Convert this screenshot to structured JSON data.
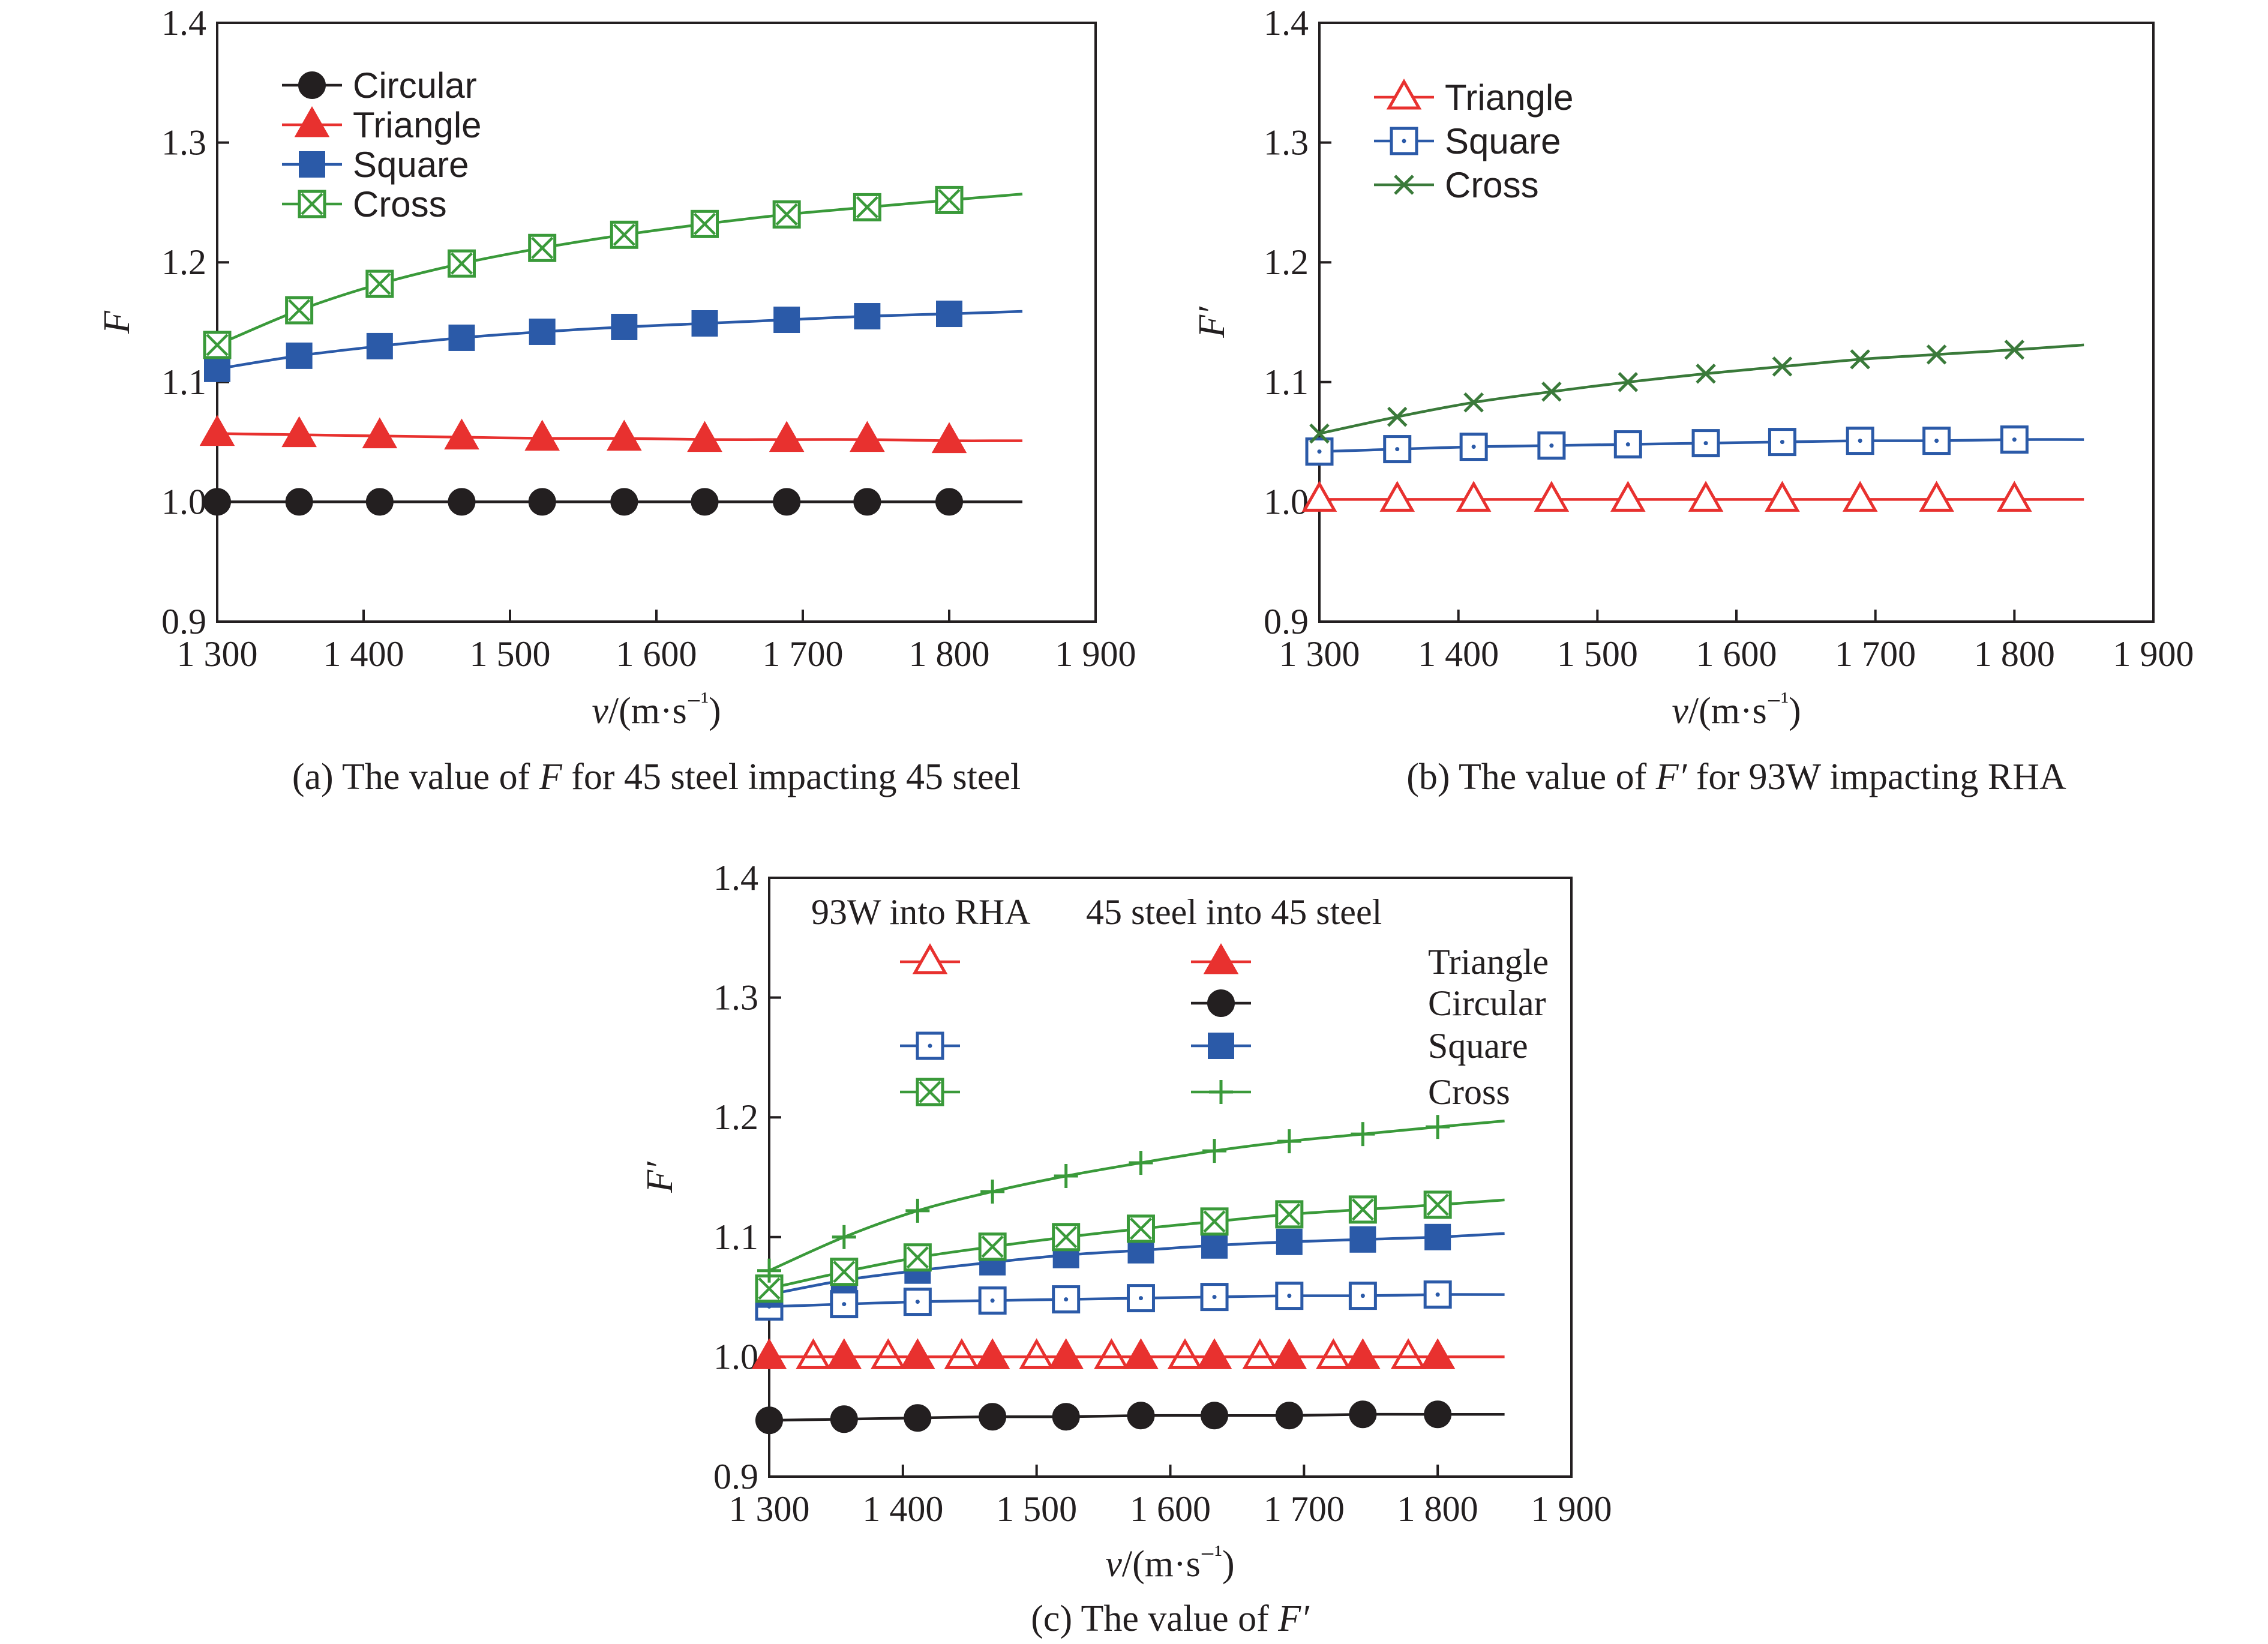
{
  "chart_data": [
    {
      "panel": "a",
      "type": "line",
      "caption": "(a) The value of F for 45 steel impacting 45 steel",
      "ylabel": "F",
      "xlabel": "v/(m·s⁻¹)",
      "xlim": [
        1300,
        1900
      ],
      "ylim": [
        0.9,
        1.4
      ],
      "xticks": [
        1300,
        1400,
        1500,
        1600,
        1700,
        1800,
        1900
      ],
      "xtick_labels": [
        "1 300",
        "1 400",
        "1 500",
        "1 600",
        "1 700",
        "1 800",
        "1 900"
      ],
      "yticks": [
        0.9,
        1.0,
        1.1,
        1.2,
        1.3,
        1.4
      ],
      "ytick_labels": [
        "0.9",
        "1.0",
        "1.1",
        "1.2",
        "1.3",
        "1.4"
      ],
      "grid": false,
      "legend_position": "top-left",
      "x": [
        1300,
        1356,
        1411,
        1467,
        1522,
        1578,
        1633,
        1689,
        1744,
        1800
      ],
      "line_end_x": 1850,
      "series": [
        {
          "name": "Circular",
          "marker": "circle-filled",
          "color": "#231f20",
          "values": [
            1.0,
            1.0,
            1.0,
            1.0,
            1.0,
            1.0,
            1.0,
            1.0,
            1.0,
            1.0
          ],
          "end_value": 1.0
        },
        {
          "name": "Triangle",
          "marker": "triangle-filled",
          "color": "#e8312f",
          "values": [
            1.057,
            1.056,
            1.055,
            1.054,
            1.053,
            1.053,
            1.052,
            1.052,
            1.052,
            1.051
          ],
          "end_value": 1.051
        },
        {
          "name": "Square",
          "marker": "square-filled",
          "color": "#2b5aa8",
          "values": [
            1.111,
            1.122,
            1.13,
            1.137,
            1.142,
            1.146,
            1.149,
            1.152,
            1.155,
            1.157
          ],
          "end_value": 1.159
        },
        {
          "name": "Cross",
          "marker": "square-x",
          "color": "#3a9a3a",
          "values": [
            1.131,
            1.16,
            1.182,
            1.199,
            1.212,
            1.223,
            1.232,
            1.24,
            1.246,
            1.252
          ],
          "end_value": 1.257
        }
      ]
    },
    {
      "panel": "b",
      "type": "line",
      "caption": "(b) The value of F′ for 93W impacting RHA",
      "ylabel": "F′",
      "xlabel": "v/(m·s⁻¹)",
      "xlim": [
        1300,
        1900
      ],
      "ylim": [
        0.9,
        1.4
      ],
      "xticks": [
        1300,
        1400,
        1500,
        1600,
        1700,
        1800,
        1900
      ],
      "xtick_labels": [
        "1 300",
        "1 400",
        "1 500",
        "1 600",
        "1 700",
        "1 800",
        "1 900"
      ],
      "yticks": [
        0.9,
        1.0,
        1.1,
        1.2,
        1.3,
        1.4
      ],
      "ytick_labels": [
        "0.9",
        "1.0",
        "1.1",
        "1.2",
        "1.3",
        "1.4"
      ],
      "grid": false,
      "legend_position": "top-left",
      "x": [
        1300,
        1356,
        1411,
        1467,
        1522,
        1578,
        1633,
        1689,
        1744,
        1800
      ],
      "line_end_x": 1850,
      "series": [
        {
          "name": "Triangle",
          "marker": "triangle-open",
          "color": "#e8312f",
          "values": [
            1.002,
            1.002,
            1.002,
            1.002,
            1.002,
            1.002,
            1.002,
            1.002,
            1.002,
            1.002
          ],
          "end_value": 1.002
        },
        {
          "name": "Square",
          "marker": "square-dot",
          "color": "#2b5aa8",
          "values": [
            1.042,
            1.044,
            1.046,
            1.047,
            1.048,
            1.049,
            1.05,
            1.051,
            1.051,
            1.052
          ],
          "end_value": 1.052
        },
        {
          "name": "Cross",
          "marker": "x",
          "color": "#3a7a3a",
          "values": [
            1.057,
            1.071,
            1.083,
            1.092,
            1.1,
            1.107,
            1.113,
            1.119,
            1.123,
            1.127
          ],
          "end_value": 1.131
        }
      ]
    },
    {
      "panel": "c",
      "type": "line",
      "caption": "(c) The value of F′",
      "ylabel": "F′",
      "xlabel": "v/(m·s⁻¹)",
      "xlim": [
        1300,
        1900
      ],
      "ylim": [
        0.9,
        1.4
      ],
      "xticks": [
        1300,
        1400,
        1500,
        1600,
        1700,
        1800,
        1900
      ],
      "xtick_labels": [
        "1 300",
        "1 400",
        "1 500",
        "1 600",
        "1 700",
        "1 800",
        "1 900"
      ],
      "yticks": [
        0.9,
        1.0,
        1.1,
        1.2,
        1.3,
        1.4
      ],
      "ytick_labels": [
        "0.9",
        "1.0",
        "1.1",
        "1.2",
        "1.3",
        "1.4"
      ],
      "grid": false,
      "legend_position": "top",
      "legend_headers": [
        "93W into RHA",
        "45 steel into 45 steel"
      ],
      "legend_rows": [
        "Triangle",
        "Circular",
        "Square",
        "Cross"
      ],
      "line_end_x": 1850,
      "series": [
        {
          "group": "93W into RHA",
          "row": "Triangle",
          "marker": "triangle-open",
          "color": "#e8312f",
          "x": [
            1333,
            1389,
            1444,
            1500,
            1556,
            1611,
            1667,
            1722,
            1778
          ],
          "values": [
            1.0,
            1.0,
            1.0,
            1.0,
            1.0,
            1.0,
            1.0,
            1.0,
            1.0
          ],
          "line": false
        },
        {
          "group": "45 steel into 45 steel",
          "row": "Triangle",
          "marker": "triangle-filled",
          "color": "#e8312f",
          "x": [
            1300,
            1356,
            1411,
            1467,
            1522,
            1578,
            1633,
            1689,
            1744,
            1800
          ],
          "values": [
            1.0,
            1.0,
            1.0,
            1.0,
            1.0,
            1.0,
            1.0,
            1.0,
            1.0,
            1.0
          ],
          "end_value": 1.0
        },
        {
          "group": "45 steel into 45 steel",
          "row": "Circular",
          "marker": "circle-filled",
          "color": "#231f20",
          "x": [
            1300,
            1356,
            1411,
            1467,
            1522,
            1578,
            1633,
            1689,
            1744,
            1800
          ],
          "values": [
            0.947,
            0.948,
            0.949,
            0.95,
            0.95,
            0.951,
            0.951,
            0.951,
            0.952,
            0.952
          ],
          "end_value": 0.952
        },
        {
          "group": "93W into RHA",
          "row": "Square",
          "marker": "square-dot",
          "color": "#2b5aa8",
          "x": [
            1300,
            1356,
            1411,
            1467,
            1522,
            1578,
            1633,
            1689,
            1744,
            1800
          ],
          "values": [
            1.042,
            1.044,
            1.046,
            1.047,
            1.048,
            1.049,
            1.05,
            1.051,
            1.051,
            1.052
          ],
          "end_value": 1.052
        },
        {
          "group": "45 steel into 45 steel",
          "row": "Square",
          "marker": "square-filled",
          "color": "#2b5aa8",
          "x": [
            1300,
            1356,
            1411,
            1467,
            1522,
            1578,
            1633,
            1689,
            1744,
            1800
          ],
          "values": [
            1.052,
            1.064,
            1.072,
            1.079,
            1.085,
            1.089,
            1.093,
            1.096,
            1.098,
            1.1
          ],
          "end_value": 1.103
        },
        {
          "group": "93W into RHA",
          "row": "Cross",
          "marker": "square-x",
          "color": "#3a9a3a",
          "x": [
            1300,
            1356,
            1411,
            1467,
            1522,
            1578,
            1633,
            1689,
            1744,
            1800
          ],
          "values": [
            1.057,
            1.071,
            1.083,
            1.092,
            1.1,
            1.107,
            1.113,
            1.119,
            1.123,
            1.127
          ],
          "end_value": 1.131
        },
        {
          "group": "45 steel into 45 steel",
          "row": "Cross",
          "marker": "plus",
          "color": "#3a9a3a",
          "x": [
            1300,
            1356,
            1411,
            1467,
            1522,
            1578,
            1633,
            1689,
            1744,
            1800
          ],
          "values": [
            1.072,
            1.1,
            1.122,
            1.138,
            1.151,
            1.162,
            1.172,
            1.18,
            1.186,
            1.192
          ],
          "end_value": 1.197
        }
      ]
    }
  ]
}
